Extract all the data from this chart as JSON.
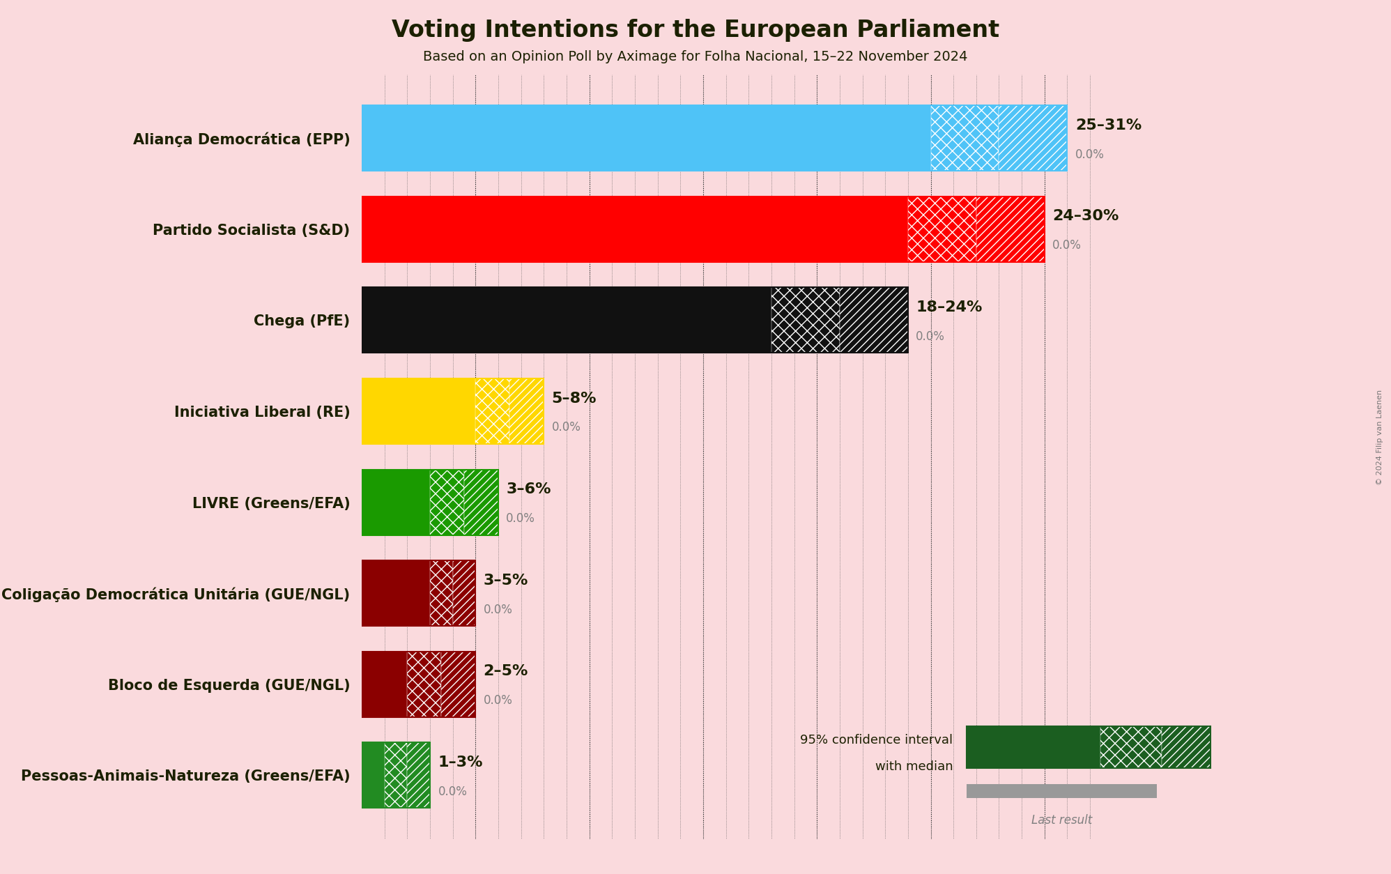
{
  "title": "Voting Intentions for the European Parliament",
  "subtitle": "Based on an Opinion Poll by Aximage for Folha Nacional, 15–22 November 2024",
  "copyright": "© 2024 Filip van Laenen",
  "background_color": "#FADADD",
  "parties": [
    "Aliança Democrática (EPP)",
    "Partido Socialista (S&D)",
    "Chega (PfE)",
    "Iniciativa Liberal (RE)",
    "LIVRE (Greens/EFA)",
    "Coligação Democrática Unitária (GUE/NGL)",
    "Bloco de Esquerda (GUE/NGL)",
    "Pessoas-Animais-Natureza (Greens/EFA)"
  ],
  "median_values": [
    28,
    27,
    21,
    6.5,
    4.5,
    4,
    3.5,
    2
  ],
  "low_values": [
    25,
    24,
    18,
    5,
    3,
    3,
    2,
    1
  ],
  "high_values": [
    31,
    30,
    24,
    8,
    6,
    5,
    5,
    3
  ],
  "labels": [
    "25–31%",
    "24–30%",
    "18–24%",
    "5–8%",
    "3–6%",
    "3–5%",
    "2–5%",
    "1–3%"
  ],
  "bar_colors": [
    "#4FC3F7",
    "#FF0000",
    "#111111",
    "#FFD700",
    "#1A9A00",
    "#8B0000",
    "#8B0000",
    "#228B22"
  ],
  "xlim": [
    0,
    33
  ],
  "legend_dark_green": "#1B5E20",
  "legend_gray": "#999999",
  "text_color": "#1B2000",
  "label_fontsize": 16,
  "party_fontsize": 15,
  "title_fontsize": 24,
  "subtitle_fontsize": 14
}
